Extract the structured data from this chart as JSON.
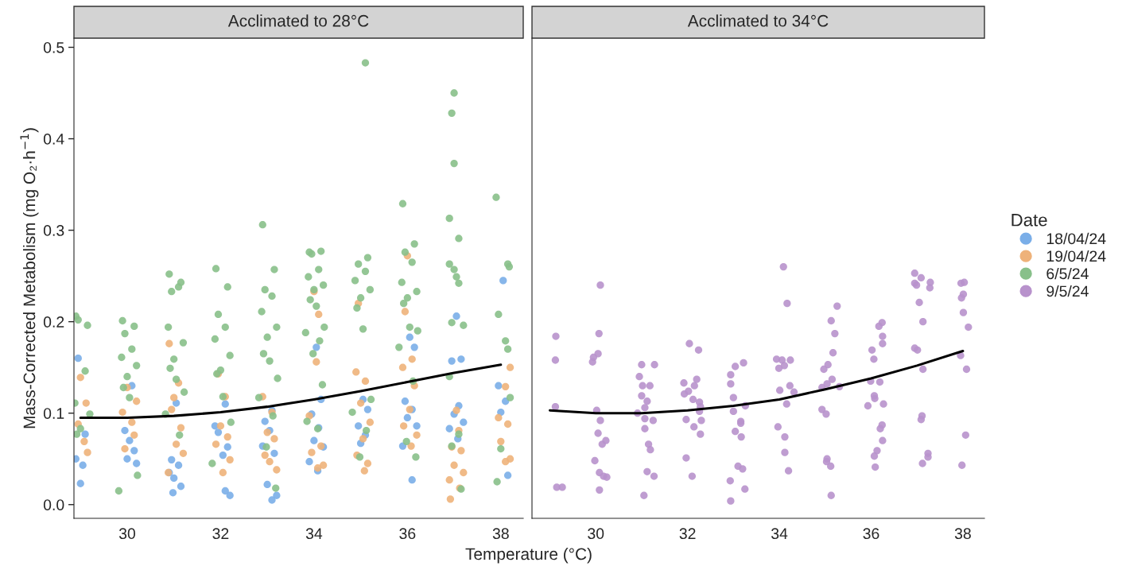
{
  "chart_data": [
    {
      "type": "scatter",
      "title": "Acclimated to 28°C",
      "xlabel": "Temperature (°C)",
      "ylabel": "Mass-Corrected Metabolism (mg O₂·h$^{−1}$)",
      "xlim": [
        28.86,
        38.48
      ],
      "ylim": [
        -0.015,
        0.51
      ],
      "xticks": [
        30,
        32,
        34,
        36,
        38
      ],
      "yticks": [
        {
          "value": 0,
          "label": "0.0"
        },
        0.1,
        0.2,
        0.3,
        0.4,
        0.5
      ],
      "marker": "circle",
      "grid": false,
      "legend": "right",
      "series": [
        {
          "name": "18/04/24",
          "color": "#7aaee8",
          "x": [
            28.95,
            29.1,
            28.9,
            29.05,
            29.0,
            30.1,
            29.95,
            30.05,
            30.15,
            30.0,
            30.2,
            31.05,
            30.95,
            31.1,
            30.9,
            31.0,
            31.15,
            30.98,
            32.1,
            31.88,
            31.95,
            32.15,
            32.05,
            32.1,
            32.2,
            33.1,
            32.95,
            33.05,
            32.9,
            33.15,
            33.0,
            33.2,
            33.1,
            34.05,
            34.15,
            33.95,
            34.1,
            34.0,
            34.2,
            33.9,
            34.08,
            35.05,
            35.15,
            34.95,
            35.1,
            35.0,
            36.05,
            36.15,
            35.95,
            36.1,
            36.0,
            36.2,
            35.9,
            36.1,
            37.05,
            37.15,
            36.95,
            37.1,
            37.0,
            37.2,
            36.9,
            37.08,
            38.05,
            37.95,
            38.1,
            38.0,
            38.15
          ],
          "values": [
            0.16,
            0.077,
            0.05,
            0.043,
            0.023,
            0.13,
            0.081,
            0.07,
            0.059,
            0.05,
            0.045,
            0.111,
            0.049,
            0.043,
            0.035,
            0.029,
            0.02,
            0.013,
            0.11,
            0.086,
            0.079,
            0.063,
            0.054,
            0.015,
            0.01,
            0.103,
            0.091,
            0.081,
            0.064,
            0.056,
            0.022,
            0.01,
            0.005,
            0.172,
            0.115,
            0.099,
            0.084,
            0.07,
            0.063,
            0.047,
            0.037,
            0.115,
            0.104,
            0.086,
            0.076,
            0.067,
            0.183,
            0.172,
            0.113,
            0.104,
            0.095,
            0.086,
            0.064,
            0.027,
            0.206,
            0.159,
            0.157,
            0.108,
            0.099,
            0.09,
            0.083,
            0.072,
            0.245,
            0.13,
            0.113,
            0.101,
            0.032
          ]
        },
        {
          "name": "19/04/24",
          "color": "#eeb27a",
          "x": [
            29.0,
            29.12,
            28.95,
            29.08,
            29.15,
            30.0,
            30.2,
            29.9,
            30.1,
            30.15,
            29.95,
            30.9,
            31.1,
            31.0,
            30.95,
            31.15,
            31.05,
            31.2,
            30.88,
            31.95,
            32.1,
            32.0,
            32.15,
            31.9,
            32.2,
            32.05,
            32.9,
            33.1,
            33.0,
            33.15,
            32.95,
            33.05,
            33.2,
            34.0,
            34.1,
            34.05,
            33.9,
            34.15,
            33.95,
            34.2,
            34.08,
            34.95,
            34.9,
            35.1,
            35.0,
            35.2,
            35.05,
            34.92,
            35.15,
            35.08,
            36.0,
            35.95,
            36.1,
            35.9,
            36.15,
            36.05,
            35.92,
            36.2,
            36.08,
            37.05,
            37.1,
            36.95,
            37.15,
            37.0,
            37.2,
            36.9,
            37.12,
            36.92,
            38.2,
            38.1,
            37.95,
            38.15,
            38.0,
            38.2,
            38.1
          ],
          "values": [
            0.139,
            0.111,
            0.088,
            0.069,
            0.057,
            0.128,
            0.113,
            0.101,
            0.09,
            0.076,
            0.061,
            0.176,
            0.133,
            0.117,
            0.104,
            0.084,
            0.066,
            0.056,
            0.035,
            0.143,
            0.118,
            0.086,
            0.074,
            0.066,
            0.049,
            0.035,
            0.118,
            0.101,
            0.079,
            0.072,
            0.054,
            0.047,
            0.038,
            0.233,
            0.208,
            0.156,
            0.097,
            0.064,
            0.057,
            0.043,
            0.04,
            0.22,
            0.145,
            0.135,
            0.111,
            0.09,
            0.072,
            0.054,
            0.045,
            0.037,
            0.272,
            0.211,
            0.159,
            0.15,
            0.13,
            0.104,
            0.086,
            0.076,
            0.064,
            0.103,
            0.081,
            0.063,
            0.059,
            0.043,
            0.035,
            0.027,
            0.018,
            0.006,
            0.15,
            0.129,
            0.095,
            0.088,
            0.069,
            0.05,
            0.047
          ]
        },
        {
          "name": "6/5/24",
          "color": "#88c08a",
          "x": [
            28.9,
            29.15,
            28.95,
            29.1,
            28.88,
            29.2,
            29.0,
            28.92,
            29.9,
            30.15,
            29.95,
            30.1,
            29.88,
            30.2,
            30.0,
            29.92,
            30.05,
            30.22,
            29.82,
            30.9,
            31.15,
            30.95,
            31.1,
            30.88,
            31.2,
            31.0,
            30.92,
            31.05,
            31.22,
            30.82,
            31.12,
            31.9,
            32.15,
            31.95,
            32.1,
            31.88,
            32.2,
            32.0,
            31.92,
            32.05,
            32.22,
            31.82,
            32.9,
            33.15,
            32.95,
            33.1,
            32.88,
            33.2,
            33.0,
            32.92,
            33.05,
            33.22,
            32.82,
            33.12,
            32.98,
            33.18,
            33.9,
            34.15,
            33.95,
            34.1,
            33.88,
            34.2,
            34.0,
            33.92,
            34.05,
            34.22,
            33.82,
            34.12,
            33.98,
            34.18,
            33.85,
            34.08,
            35.1,
            35.15,
            34.95,
            35.1,
            34.88,
            35.2,
            35.0,
            34.92,
            35.05,
            35.22,
            34.82,
            35.12,
            34.98,
            35.9,
            36.15,
            35.95,
            36.1,
            35.88,
            36.2,
            36.0,
            35.92,
            36.05,
            36.22,
            35.82,
            36.12,
            35.98,
            36.18,
            37.0,
            36.95,
            37.0,
            36.9,
            37.1,
            36.9,
            37.0,
            37.05,
            37.1,
            36.95,
            37.2,
            36.9,
            37.1,
            36.95,
            37.15,
            37.9,
            38.15,
            38.18,
            37.95,
            38.1,
            38.15,
            38.2,
            38.0,
            37.92
          ],
          "values": [
            0.206,
            0.196,
            0.202,
            0.146,
            0.111,
            0.099,
            0.083,
            0.077,
            0.201,
            0.195,
            0.187,
            0.17,
            0.161,
            0.152,
            0.14,
            0.128,
            0.117,
            0.032,
            0.015,
            0.252,
            0.243,
            0.233,
            0.238,
            0.194,
            0.177,
            0.159,
            0.149,
            0.137,
            0.123,
            0.099,
            0.076,
            0.258,
            0.238,
            0.208,
            0.194,
            0.181,
            0.163,
            0.147,
            0.143,
            0.118,
            0.09,
            0.045,
            0.306,
            0.257,
            0.235,
            0.228,
            0.211,
            0.194,
            0.183,
            0.165,
            0.157,
            0.138,
            0.117,
            0.097,
            0.063,
            0.018,
            0.276,
            0.277,
            0.274,
            0.257,
            0.249,
            0.24,
            0.235,
            0.224,
            0.217,
            0.194,
            0.188,
            0.179,
            0.165,
            0.131,
            0.091,
            0.083,
            0.483,
            0.27,
            0.263,
            0.255,
            0.245,
            0.235,
            0.226,
            0.215,
            0.192,
            0.115,
            0.101,
            0.081,
            0.052,
            0.329,
            0.285,
            0.276,
            0.265,
            0.243,
            0.233,
            0.226,
            0.22,
            0.194,
            0.19,
            0.172,
            0.135,
            0.069,
            0.052,
            0.45,
            0.428,
            0.373,
            0.313,
            0.291,
            0.263,
            0.257,
            0.249,
            0.242,
            0.199,
            0.196,
            0.14,
            0.077,
            0.064,
            0.017,
            0.336,
            0.263,
            0.26,
            0.208,
            0.179,
            0.17,
            0.117,
            0.061,
            0.025
          ]
        },
        {
          "type": "line",
          "color": "#000000",
          "marker": "none",
          "x": [
            29,
            30,
            31,
            32,
            33,
            34,
            35,
            36,
            37,
            38
          ],
          "values": [
            0.095,
            0.095,
            0.097,
            0.101,
            0.107,
            0.115,
            0.124,
            0.134,
            0.144,
            0.153
          ]
        }
      ]
    },
    {
      "type": "scatter",
      "title": "Acclimated to 34°C",
      "xlim": [
        28.61,
        38.47
      ],
      "ylim": [
        -0.015,
        0.51
      ],
      "xticks": [
        30,
        32,
        34,
        36,
        38
      ],
      "tick_labels": "x",
      "marker": "circle",
      "grid": false,
      "legend": "right",
      "legend_title": "Date",
      "series": [
        {
          "name": "9/5/24",
          "color": "#b892cc",
          "x": [
            29.13,
            29.12,
            29.12,
            29.15,
            29.27,
            30.1,
            30.07,
            30.05,
            29.95,
            29.93,
            30.02,
            30.1,
            30.05,
            30.14,
            30.22,
            29.98,
            30.08,
            30.17,
            30.24,
            30.08,
            31.0,
            31.28,
            30.95,
            31.02,
            31.18,
            31.0,
            31.12,
            31.07,
            30.91,
            31.07,
            31.25,
            31.07,
            31.15,
            31.19,
            31.12,
            31.27,
            31.05,
            32.04,
            32.24,
            31.92,
            32.2,
            32.15,
            32.02,
            31.93,
            32.12,
            32.26,
            32.28,
            32.26,
            31.97,
            32.3,
            32.14,
            32.28,
            31.97,
            32.1,
            33.22,
            33.04,
            32.94,
            32.94,
            33.0,
            33.0,
            33.26,
            33.16,
            33.16,
            33.04,
            33.17,
            33.1,
            33.2,
            32.93,
            33.25,
            32.94,
            34.09,
            34.17,
            33.94,
            34.06,
            34.24,
            33.99,
            34.11,
            34.01,
            34.23,
            34.32,
            34.16,
            33.97,
            34.12,
            34.12,
            34.2,
            35.26,
            35.13,
            35.21,
            35.17,
            35.06,
            34.97,
            35.15,
            35.04,
            34.93,
            35.31,
            34.93,
            35.02,
            35.04,
            35.03,
            35.12,
            35.13,
            36.24,
            36.17,
            36.25,
            36.25,
            36.02,
            36.06,
            35.99,
            36.19,
            36.07,
            36.08,
            36.27,
            35.93,
            36.24,
            36.2,
            36.25,
            36.13,
            36.07,
            36.09,
            36.95,
            37.09,
            36.95,
            36.99,
            37.29,
            37.28,
            37.05,
            37.13,
            36.95,
            37.01,
            37.13,
            37.11,
            37.09,
            37.24,
            37.24,
            37.12,
            38.03,
            37.96,
            38.01,
            37.97,
            38.01,
            38.12,
            37.95,
            38.08,
            38.06,
            37.98
          ],
          "values": [
            0.184,
            0.158,
            0.107,
            0.019,
            0.019,
            0.24,
            0.187,
            0.165,
            0.161,
            0.156,
            0.103,
            0.092,
            0.078,
            0.066,
            0.07,
            0.048,
            0.035,
            0.031,
            0.03,
            0.016,
            0.153,
            0.153,
            0.14,
            0.13,
            0.13,
            0.119,
            0.113,
            0.106,
            0.1,
            0.094,
            0.092,
            0.083,
            0.066,
            0.06,
            0.036,
            0.031,
            0.01,
            0.176,
            0.169,
            0.133,
            0.137,
            0.13,
            0.124,
            0.121,
            0.115,
            0.112,
            0.107,
            0.102,
            0.093,
            0.092,
            0.085,
            0.077,
            0.051,
            0.031,
            0.155,
            0.151,
            0.142,
            0.132,
            0.117,
            0.102,
            0.108,
            0.091,
            0.089,
            0.08,
            0.074,
            0.042,
            0.039,
            0.026,
            0.017,
            0.004,
            0.26,
            0.22,
            0.159,
            0.158,
            0.158,
            0.149,
            0.152,
            0.125,
            0.13,
            0.123,
            0.11,
            0.085,
            0.074,
            0.057,
            0.037,
            0.217,
            0.201,
            0.187,
            0.166,
            0.153,
            0.148,
            0.137,
            0.132,
            0.128,
            0.129,
            0.104,
            0.099,
            0.05,
            0.047,
            0.042,
            0.01,
            0.199,
            0.195,
            0.184,
            0.176,
            0.169,
            0.159,
            0.135,
            0.134,
            0.119,
            0.116,
            0.11,
            0.108,
            0.087,
            0.083,
            0.07,
            0.059,
            0.053,
            0.041,
            0.253,
            0.248,
            0.242,
            0.24,
            0.243,
            0.237,
            0.221,
            0.2,
            0.171,
            0.169,
            0.148,
            0.097,
            0.093,
            0.056,
            0.052,
            0.045,
            0.243,
            0.242,
            0.23,
            0.226,
            0.21,
            0.194,
            0.163,
            0.148,
            0.076,
            0.043
          ]
        },
        {
          "type": "line",
          "color": "#000000",
          "marker": "none",
          "x": [
            29,
            30,
            31,
            32,
            33,
            34,
            35,
            36,
            37,
            38
          ],
          "values": [
            0.103,
            0.1,
            0.1,
            0.103,
            0.108,
            0.115,
            0.126,
            0.138,
            0.152,
            0.168
          ]
        }
      ]
    }
  ]
}
